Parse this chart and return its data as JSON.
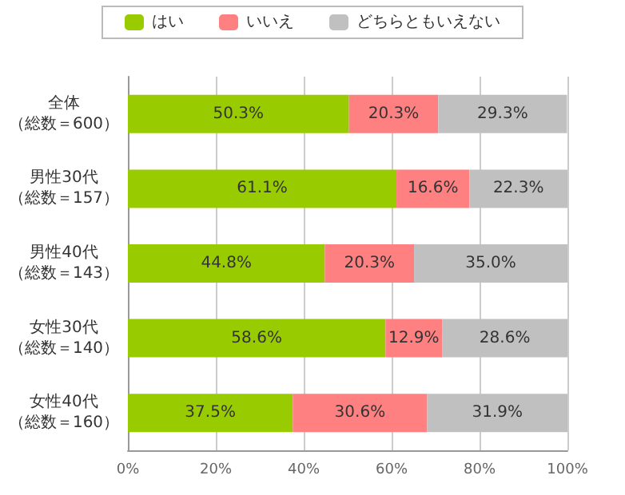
{
  "chart_data": {
    "type": "bar",
    "orientation": "horizontal",
    "stacked": true,
    "categories": [
      "全体（総数＝600）",
      "男性30代（総数＝157）",
      "男性40代（総数＝143）",
      "女性30代（総数＝140）",
      "女性40代（総数＝160）"
    ],
    "series": [
      {
        "name": "はい",
        "color": "#99cc00",
        "values": [
          50.3,
          61.1,
          44.8,
          58.6,
          37.5
        ]
      },
      {
        "name": "いいえ",
        "color": "#ff8080",
        "values": [
          20.3,
          16.6,
          20.3,
          12.9,
          30.6
        ]
      },
      {
        "name": "どちらともいえない",
        "color": "#c0c0c0",
        "values": [
          29.3,
          22.3,
          35.0,
          28.6,
          31.9
        ]
      }
    ],
    "value_labels": [
      [
        "50.3%",
        "61.1%",
        "44.8%",
        "58.6%",
        "37.5%"
      ],
      [
        "20.3%",
        "16.6%",
        "20.3%",
        "12.9%",
        "30.6%"
      ],
      [
        "29.3%",
        "22.3%",
        "35.0%",
        "28.6%",
        "31.9%"
      ]
    ],
    "xlim": [
      0,
      100
    ],
    "xticks": [
      {
        "value": 0,
        "label": "0%"
      },
      {
        "value": 20,
        "label": "20%"
      },
      {
        "value": 40,
        "label": "40%"
      },
      {
        "value": 60,
        "label": "60%"
      },
      {
        "value": 80,
        "label": "80%"
      },
      {
        "value": 100,
        "label": "100%"
      }
    ],
    "grid": "x",
    "legend": "top"
  }
}
